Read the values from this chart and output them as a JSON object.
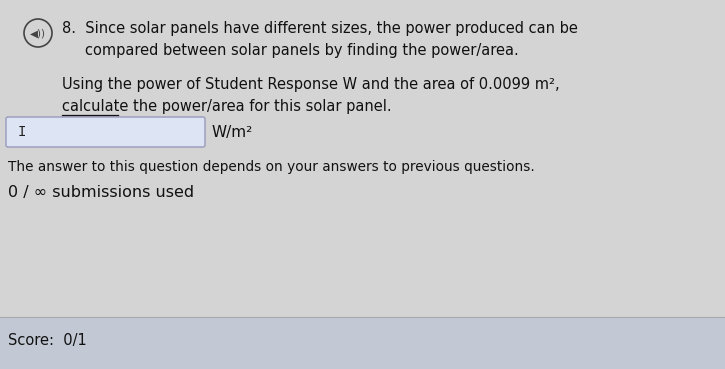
{
  "background_color": "#d4d4d4",
  "score_bar_color": "#c2c8d4",
  "text_color": "#111111",
  "line1": "8.  Since solar panels have different sizes, the power produced can be",
  "line2": "compared between solar panels by finding the power/area.",
  "line3": "Using the power of Student Response W and the area of 0.0099 m²,",
  "line4": "calculate the power/area for this solar panel.",
  "unit_label": "W/m²",
  "note_line": "The answer to this question depends on your answers to previous questions.",
  "submissions_line": "0 / ∞ submissions used",
  "score_label": "Score:  0/1",
  "input_box_facecolor": "#dde5f5",
  "input_box_edgecolor": "#9999bb",
  "speaker_color": "#444444",
  "main_font_size": 10.5,
  "small_font_size": 9.8,
  "score_font_size": 10.5
}
